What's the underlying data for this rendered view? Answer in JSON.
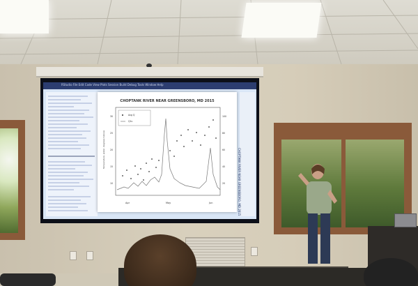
{
  "app": {
    "menubar_text": "RStudio  File  Edit  Code  View  Plots  Session  Build  Debug  Tools  Window  Help"
  },
  "plot": {
    "title": "CHOPTANK RIVER NEAR GREENSBORO, MD 2015",
    "legend": [
      "Avg Q",
      "Q1s"
    ],
    "x_ticks": [
      "Apr",
      "May",
      "Jun"
    ],
    "y_ticks_left": [
      "30",
      "25",
      "20",
      "15",
      "10"
    ],
    "y_ticks_right": [
      "100",
      "80",
      "60",
      "40",
      "20"
    ],
    "ylabel": "Temperature, water, degrees Celsius"
  },
  "right_pane_text": "CHOPTANK RIVER NEAR GREENSBORO, MD 2015",
  "colors": {
    "accent": "#2c3d70",
    "wall": "#d3caB6",
    "window_frame": "#8a5a3a"
  }
}
